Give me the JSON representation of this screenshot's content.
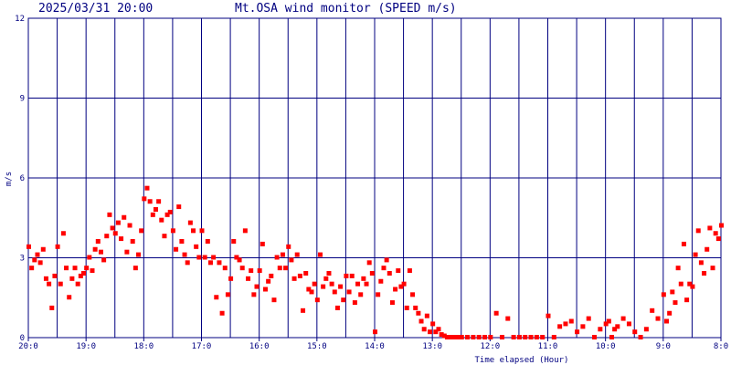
{
  "header": {
    "timestamp": "2025/03/31 20:00",
    "title": "Mt.OSA wind monitor (SPEED m/s)"
  },
  "colors": {
    "grid": "#000080",
    "text": "#000080",
    "points": "#ff0000",
    "background": "#ffffff"
  },
  "chart_data": {
    "type": "scatter",
    "title": "Mt.OSA wind monitor (SPEED m/s)",
    "subtitle": "2025/03/31 20:00",
    "xlabel": "Time elapsed (Hour)",
    "ylabel": "m/s",
    "x_axis_reversed": true,
    "xlim": [
      0,
      12
    ],
    "ylim": [
      0,
      12
    ],
    "grid": true,
    "x_tick_positions": [
      0,
      1,
      2,
      3,
      4,
      5,
      6,
      7,
      8,
      9,
      10,
      11,
      12
    ],
    "x_tick_labels": [
      "20:0",
      "19:0",
      "18:0",
      "17:0",
      "16:0",
      "15:0",
      "14:0",
      "13:0",
      "12:0",
      "11:0",
      "10:0",
      "9:0",
      "8:0"
    ],
    "y_tick_values": [
      0,
      3,
      6,
      9,
      12
    ],
    "y_tick_labels": [
      "0",
      "3",
      "6",
      "9",
      "12"
    ],
    "series": [
      {
        "x": [
          0.0,
          0.05,
          0.1,
          0.15,
          0.2,
          0.25,
          0.3,
          0.35,
          0.4,
          0.45,
          0.5,
          0.55,
          0.6,
          0.65,
          0.7,
          0.75,
          0.8,
          0.85,
          0.9,
          0.95,
          1.0,
          1.05,
          1.1,
          1.15,
          1.2,
          1.25,
          1.3,
          1.35,
          1.4,
          1.45,
          1.5,
          1.55,
          1.6,
          1.65,
          1.7,
          1.75,
          1.8,
          1.85,
          1.9,
          1.95,
          2.0,
          2.05,
          2.1,
          2.15,
          2.2,
          2.25,
          2.3,
          2.35,
          2.4,
          2.45,
          2.5,
          2.55,
          2.6,
          2.65,
          2.7,
          2.75,
          2.8,
          2.85,
          2.9,
          2.95,
          3.0,
          3.05,
          3.1,
          3.15,
          3.2,
          3.25,
          3.3,
          3.35,
          3.4,
          3.45,
          3.5,
          3.55,
          3.6,
          3.65,
          3.7,
          3.75,
          3.8,
          3.85,
          3.9,
          3.95,
          4.0,
          4.05,
          4.1,
          4.15,
          4.2,
          4.25,
          4.3,
          4.35,
          4.4,
          4.45,
          4.5,
          4.55,
          4.6,
          4.65,
          4.7,
          4.75,
          4.8,
          4.85,
          4.9,
          4.95,
          5.0,
          5.05,
          5.1,
          5.15,
          5.2,
          5.25,
          5.3,
          5.35,
          5.4,
          5.45,
          5.5,
          5.55,
          5.6,
          5.65,
          5.7,
          5.75,
          5.8,
          5.85,
          5.9,
          5.95,
          6.0,
          6.05,
          6.1,
          6.15,
          6.2,
          6.25,
          6.3,
          6.35,
          6.4,
          6.45,
          6.5,
          6.55,
          6.6,
          6.65,
          6.7,
          6.75,
          6.8,
          6.85,
          6.9,
          6.95,
          7.0,
          7.05,
          7.1,
          7.15,
          7.2,
          7.25,
          7.3,
          7.35,
          7.4,
          7.45,
          7.5,
          7.6,
          7.7,
          7.8,
          7.9,
          8.0,
          8.1,
          8.2,
          8.3,
          8.4,
          8.5,
          8.6,
          8.7,
          8.8,
          8.9,
          9.0,
          9.1,
          9.2,
          9.3,
          9.4,
          9.5,
          9.6,
          9.7,
          9.8,
          9.9,
          10.0,
          10.05,
          10.1,
          10.15,
          10.2,
          10.3,
          10.4,
          10.5,
          10.6,
          10.7,
          10.8,
          10.9,
          11.0,
          11.05,
          11.1,
          11.15,
          11.2,
          11.25,
          11.3,
          11.35,
          11.4,
          11.45,
          11.5,
          11.55,
          11.6,
          11.65,
          11.7,
          11.75,
          11.8,
          11.85,
          11.9,
          11.95,
          12.0
        ],
        "y": [
          3.4,
          2.6,
          2.9,
          3.1,
          2.8,
          3.3,
          2.2,
          2.0,
          1.1,
          2.3,
          3.4,
          2.0,
          3.9,
          2.6,
          1.5,
          2.2,
          2.6,
          2.0,
          2.3,
          2.4,
          2.6,
          3.0,
          2.5,
          3.3,
          3.6,
          3.2,
          2.9,
          3.8,
          4.6,
          4.1,
          3.9,
          4.3,
          3.7,
          4.5,
          3.2,
          4.2,
          3.6,
          2.6,
          3.1,
          4.0,
          5.2,
          5.6,
          5.1,
          4.6,
          4.8,
          5.1,
          4.4,
          3.8,
          4.6,
          4.7,
          4.0,
          3.3,
          4.9,
          3.6,
          3.1,
          2.8,
          4.3,
          4.0,
          3.4,
          3.0,
          4.0,
          3.0,
          3.6,
          2.8,
          3.0,
          1.5,
          2.8,
          0.9,
          2.6,
          1.6,
          2.2,
          3.6,
          3.0,
          2.9,
          2.6,
          4.0,
          2.2,
          2.5,
          1.6,
          1.9,
          2.5,
          3.5,
          1.8,
          2.1,
          2.3,
          1.4,
          3.0,
          2.6,
          3.1,
          2.6,
          3.4,
          2.9,
          2.2,
          3.1,
          2.3,
          1.0,
          2.4,
          1.8,
          1.7,
          2.0,
          1.4,
          3.1,
          1.9,
          2.2,
          2.4,
          2.0,
          1.7,
          1.1,
          1.9,
          1.4,
          2.3,
          1.7,
          2.3,
          1.3,
          2.0,
          1.6,
          2.2,
          2.0,
          2.8,
          2.4,
          0.2,
          1.6,
          2.1,
          2.6,
          2.9,
          2.4,
          1.3,
          1.8,
          2.5,
          1.9,
          2.0,
          1.1,
          2.5,
          1.6,
          1.1,
          0.9,
          0.6,
          0.3,
          0.8,
          0.2,
          0.5,
          0.2,
          0.3,
          0.1,
          0.05,
          0.0,
          0.0,
          0.0,
          0.0,
          0.0,
          0.0,
          0.0,
          0.0,
          0.0,
          0.0,
          0.0,
          0.9,
          0.0,
          0.7,
          0.0,
          0.0,
          0.0,
          0.0,
          0.0,
          0.0,
          0.8,
          0.0,
          0.4,
          0.5,
          0.6,
          0.2,
          0.4,
          0.7,
          0.0,
          0.3,
          0.5,
          0.6,
          0.0,
          0.3,
          0.4,
          0.7,
          0.5,
          0.2,
          0.0,
          0.3,
          1.0,
          0.7,
          1.6,
          0.6,
          0.9,
          1.7,
          1.3,
          2.6,
          2.0,
          3.5,
          1.4,
          2.0,
          1.9,
          3.1,
          4.0,
          2.8,
          2.4,
          3.3,
          4.1,
          2.6,
          3.9,
          3.7,
          4.2
        ]
      }
    ]
  }
}
